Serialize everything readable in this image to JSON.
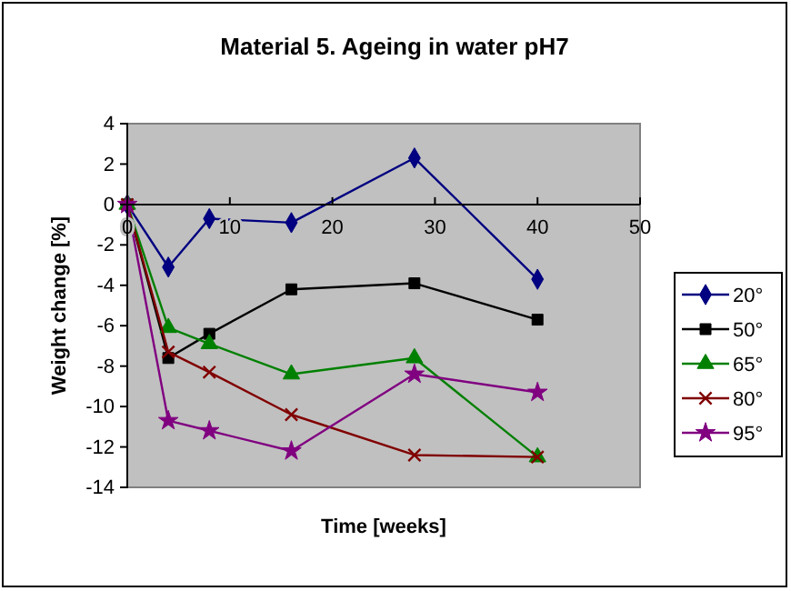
{
  "chart_data": {
    "type": "line",
    "title": "Material 5. Ageing in water pH7",
    "xlabel": "Time [weeks]",
    "ylabel": "Weight change [%]",
    "x": [
      0,
      4,
      8,
      16,
      28,
      40
    ],
    "xlim": [
      0,
      50
    ],
    "xticks": [
      0,
      10,
      20,
      30,
      40,
      50
    ],
    "ylim": [
      -14,
      4
    ],
    "yticks": [
      -14,
      -12,
      -10,
      -8,
      -6,
      -4,
      -2,
      0,
      2,
      4
    ],
    "grid": false,
    "legend": "right",
    "line_style": "solid",
    "series": [
      {
        "name": "20°",
        "color": "#000080",
        "marker": "diamond",
        "values": [
          0,
          -3.1,
          -0.7,
          -0.9,
          2.3,
          -3.7
        ]
      },
      {
        "name": "50°",
        "color": "#000000",
        "marker": "square",
        "values": [
          0,
          -7.6,
          -6.4,
          -4.2,
          -3.9,
          -5.7
        ]
      },
      {
        "name": "65°",
        "color": "#008000",
        "marker": "triangle",
        "values": [
          0,
          -6.1,
          -6.9,
          -8.4,
          -7.6,
          -12.5
        ]
      },
      {
        "name": "80°",
        "color": "#800000",
        "marker": "cross",
        "values": [
          0,
          -7.3,
          -8.3,
          -10.4,
          -12.4,
          -12.5
        ]
      },
      {
        "name": "95°",
        "color": "#800080",
        "marker": "star",
        "values": [
          0,
          -10.7,
          -11.2,
          -12.2,
          -8.4,
          -9.3
        ]
      }
    ]
  }
}
